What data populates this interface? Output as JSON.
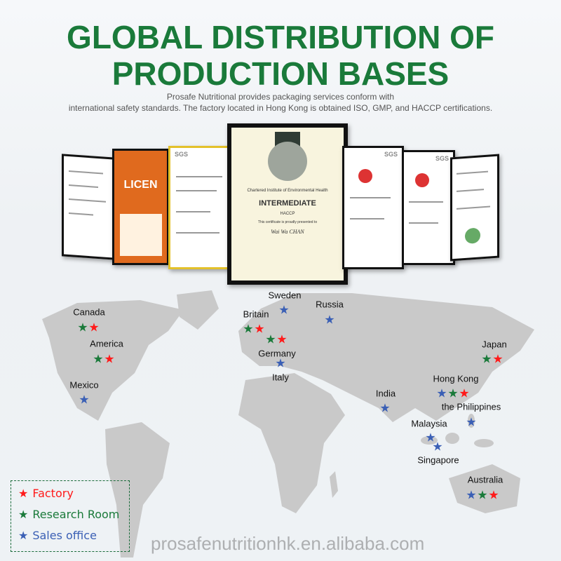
{
  "header": {
    "title_line1": "GLOBAL DISTRIBUTION OF",
    "title_line2": "PRODUCTION BASES",
    "subtitle_line1": "Prosafe Nutritional provides packaging services conform with",
    "subtitle_line2": "international safety standards. The factory located in Hong Kong is obtained ISO, GMP, and HACCP certifications."
  },
  "certificate": {
    "institute": "Chartered Institute of Environmental Health",
    "level": "INTERMEDIATE",
    "course": "HACCP",
    "presented": "This certificate is proudly presented to",
    "recipient": "Wai Wa CHAN",
    "sgs": "SGS",
    "licence": "LICEN"
  },
  "colors": {
    "factory": "#ff1a1a",
    "research": "#1a7a3a",
    "sales": "#3a5fb5",
    "title": "#1a7a3a",
    "land": "#c9c9c9"
  },
  "legend": {
    "factory": "Factory",
    "research": "Research Room",
    "sales": "Sales office"
  },
  "locations": [
    {
      "name": "Canada",
      "types": [
        "research",
        "factory"
      ]
    },
    {
      "name": "America",
      "types": [
        "research",
        "factory"
      ]
    },
    {
      "name": "Mexico",
      "types": [
        "sales"
      ]
    },
    {
      "name": "Sweden",
      "types": [
        "sales"
      ]
    },
    {
      "name": "Russia",
      "types": [
        "sales"
      ]
    },
    {
      "name": "Britain",
      "types": [
        "research",
        "factory"
      ]
    },
    {
      "name": "Germany",
      "types": [
        "research",
        "factory"
      ]
    },
    {
      "name": "Italy",
      "types": [
        "sales"
      ]
    },
    {
      "name": "India",
      "types": [
        "sales"
      ]
    },
    {
      "name": "Japan",
      "types": [
        "research",
        "factory"
      ]
    },
    {
      "name": "Hong Kong",
      "types": [
        "sales",
        "research",
        "factory"
      ]
    },
    {
      "name": "the Philippines",
      "types": [
        "sales"
      ]
    },
    {
      "name": "Malaysia",
      "types": [
        "sales"
      ]
    },
    {
      "name": "Singapore",
      "types": [
        "sales"
      ]
    },
    {
      "name": "Australia",
      "types": [
        "sales",
        "research",
        "factory"
      ]
    }
  ],
  "watermark": "prosafenutritionhk.en.alibaba.com"
}
